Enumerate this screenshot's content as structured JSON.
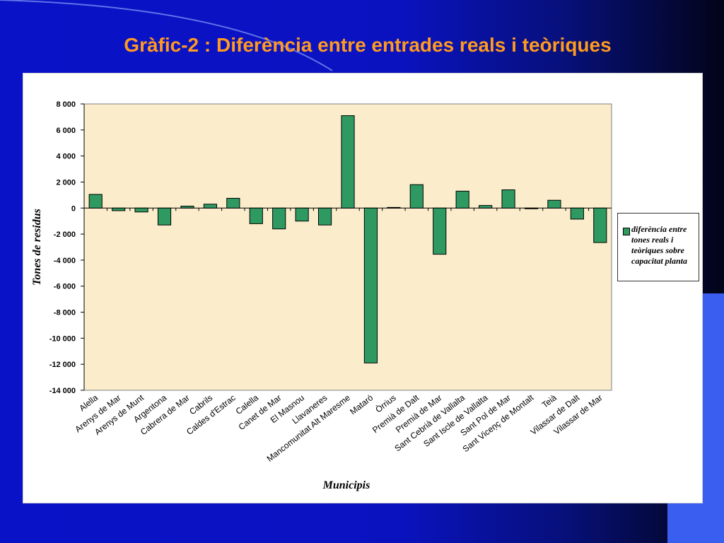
{
  "slide": {
    "title": "Gràfic-2 : Diferència entre entrades reals i teòriques"
  },
  "colors": {
    "bar_fill": "#2e9a62",
    "plot_background": "#fbedcb",
    "title": "#ff9a1f"
  },
  "chart_data": {
    "type": "bar",
    "categories": [
      "Alella",
      "Arenys de Mar",
      "Arenys de Munt",
      "Argentona",
      "Cabrera de Mar",
      "Cabrils",
      "Caldes d'Estrac",
      "Calella",
      "Canet de Mar",
      "El Masnou",
      "Llavaneres",
      "Mancomunitat Alt Maresme",
      "Mataró",
      "Òrrius",
      "Premià de Dalt",
      "Premià de Mar",
      "Sant Cebrià de Vallalta",
      "Sant Iscle de Vallalta",
      "Sant Pol de Mar",
      "Sant Viceņç de Montalt",
      "Teià",
      "Vilassar de Dalt",
      "Vilassar de Mar"
    ],
    "series": [
      {
        "name": "diferència entre tones reals i teòriques sobre capacitat planta",
        "values": [
          1050,
          -200,
          -300,
          -1300,
          150,
          300,
          750,
          -1200,
          -1600,
          -1000,
          -1300,
          7100,
          -11900,
          50,
          1800,
          -3550,
          1300,
          200,
          1400,
          -50,
          600,
          -850,
          -2650
        ]
      }
    ],
    "ylim": [
      -14000,
      8000
    ],
    "ytick_step": 2000,
    "ytick_labels": [
      "8 000",
      "6 000",
      "4 000",
      "2 000",
      "0",
      "-2 000",
      "-4 000",
      "-6 000",
      "-8 000",
      "-10 000",
      "-12 000",
      "-14 000"
    ],
    "xlabel": "Municipis",
    "ylabel": "Tones de residus",
    "legend_position": "right",
    "grid": false
  }
}
